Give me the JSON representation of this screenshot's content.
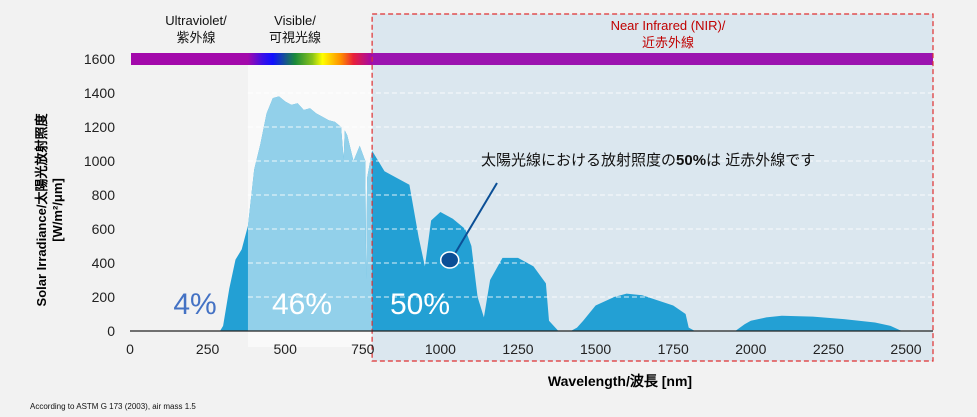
{
  "chart_data": {
    "type": "area",
    "xlabel": "Wavelength/波長 [nm]",
    "ylabel": "Solar Irradiance/太陽光放射照度",
    "ylabel_unit": "[W/m²/μm]",
    "xlim": [
      0,
      2550
    ],
    "ylim": [
      0,
      1600
    ],
    "x_ticks": [
      "0",
      "250",
      "500",
      "750",
      "1000",
      "1250",
      "1500",
      "1750",
      "2000",
      "2250",
      "2500"
    ],
    "y_ticks": [
      "0",
      "200",
      "400",
      "600",
      "800",
      "1000",
      "1200",
      "1400",
      "1600"
    ],
    "grid": true,
    "color": "#23a0d4",
    "series": [
      {
        "x": [
          290,
          300,
          320,
          340,
          360,
          380,
          400,
          420,
          440,
          460,
          480,
          500,
          520,
          540,
          560,
          580,
          600,
          620,
          640,
          660,
          680,
          688,
          692,
          700,
          720,
          740,
          758,
          761,
          764,
          780,
          800,
          820,
          860,
          900,
          930,
          950,
          970,
          1000,
          1040,
          1080,
          1100,
          1120,
          1140,
          1160,
          1200,
          1250,
          1300,
          1340,
          1350,
          1380,
          1420,
          1440,
          1460,
          1500,
          1560,
          1600,
          1650,
          1700,
          1750,
          1790,
          1800,
          1820,
          1950,
          1980,
          2000,
          2050,
          2100,
          2200,
          2300,
          2400,
          2450,
          2480,
          2490
        ],
        "y": [
          0,
          30,
          250,
          420,
          480,
          620,
          950,
          1100,
          1280,
          1370,
          1380,
          1350,
          1330,
          1340,
          1300,
          1310,
          1280,
          1260,
          1240,
          1230,
          1200,
          1010,
          1180,
          1150,
          1000,
          1090,
          1000,
          300,
          900,
          1060,
          1000,
          940,
          900,
          860,
          550,
          380,
          650,
          700,
          660,
          600,
          500,
          200,
          80,
          300,
          430,
          430,
          380,
          280,
          60,
          0,
          0,
          20,
          60,
          150,
          200,
          220,
          210,
          180,
          150,
          100,
          20,
          0,
          0,
          40,
          60,
          80,
          90,
          85,
          70,
          50,
          30,
          5,
          0
        ]
      }
    ],
    "regions": [
      {
        "name": "uv",
        "label": "Ultraviolet/\n紫外線",
        "range": [
          0,
          380
        ],
        "share": "4%",
        "share_color": "#4472c4"
      },
      {
        "name": "visible",
        "label": "Visible/\n可視光線",
        "range": [
          380,
          780
        ],
        "share": "46%",
        "share_color": "#ffffff"
      },
      {
        "name": "nir",
        "label": "Near Infrared (NIR)/\n近赤外線",
        "range": [
          780,
          2600
        ],
        "share": "50%",
        "share_color": "#ffffff",
        "label_color": "#c00000"
      }
    ],
    "annotation": {
      "text_pre": "太陽光線における放射照度の",
      "text_bold": "50%",
      "text_post": "は 近赤外線です",
      "point": [
        1030,
        400
      ]
    },
    "footnote": "According to ASTM G 173 (2003), air mass 1.5"
  }
}
